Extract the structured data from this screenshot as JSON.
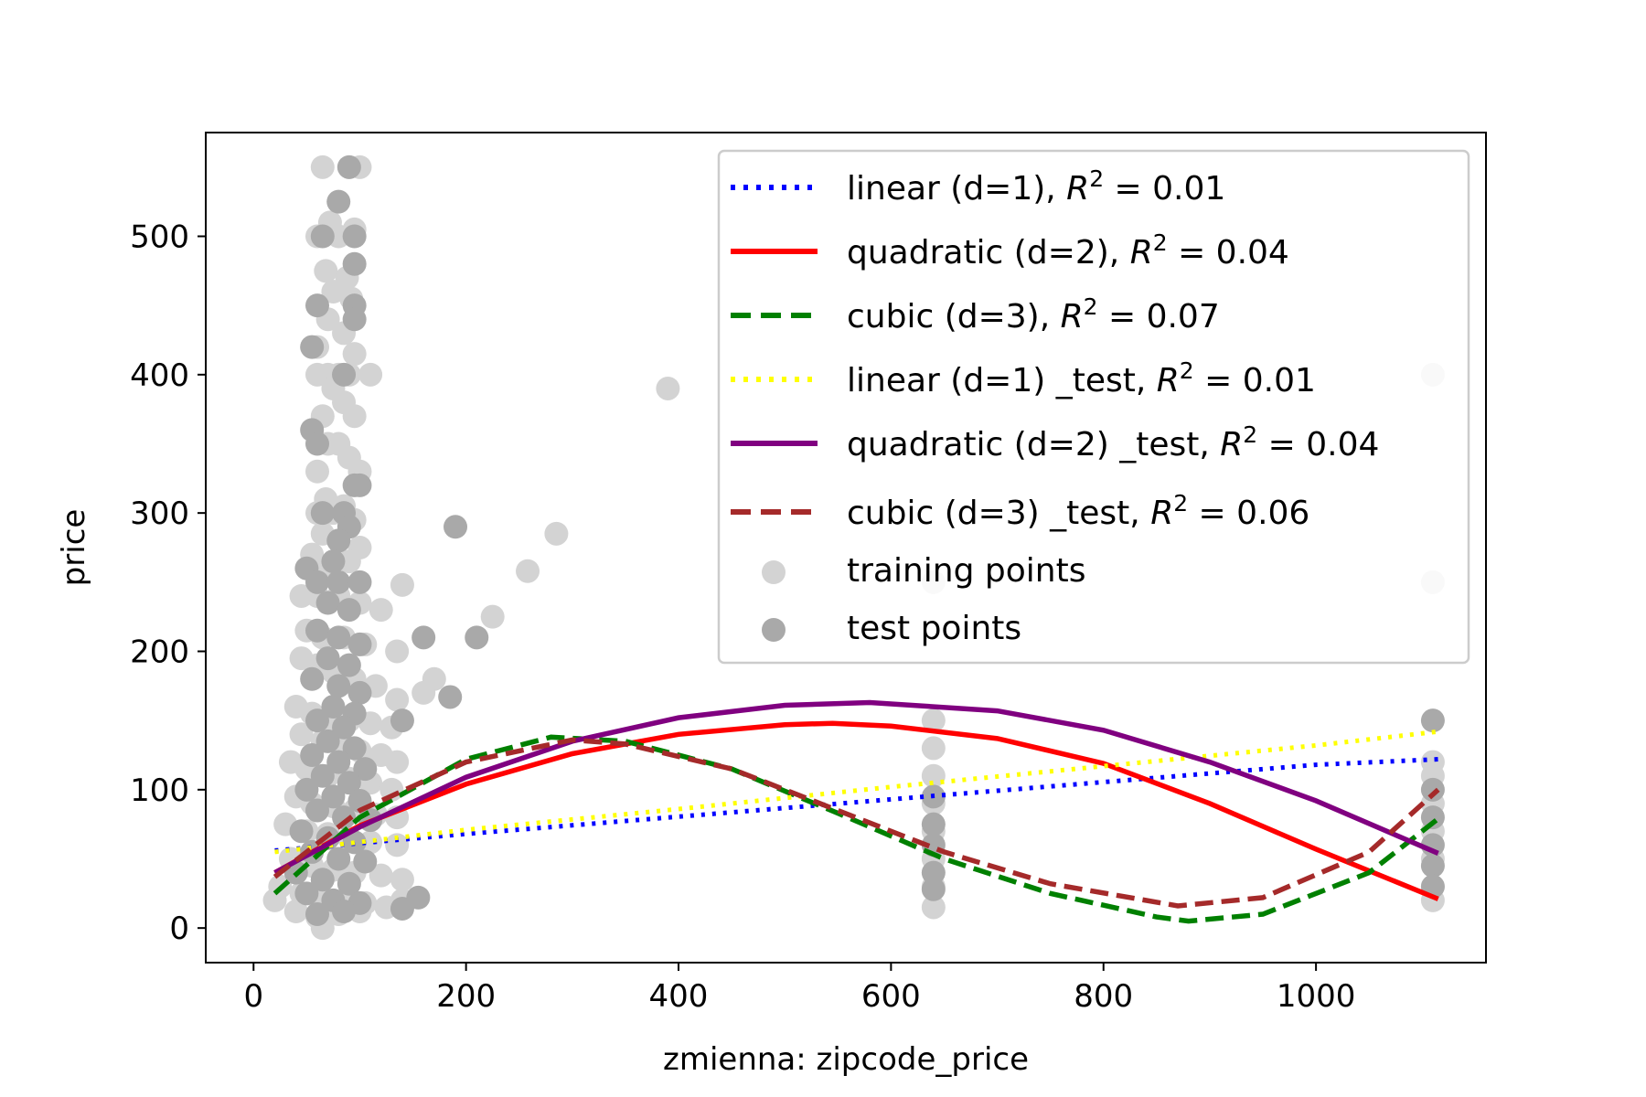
{
  "chart_data": {
    "type": "scatter",
    "title": "",
    "xlabel": "zmienna: zipcode_price",
    "ylabel": "price",
    "xlim": [
      -45,
      1160
    ],
    "ylim": [
      -25,
      575
    ],
    "xticks": [
      0,
      200,
      400,
      600,
      800,
      1000
    ],
    "yticks": [
      0,
      100,
      200,
      300,
      400,
      500
    ],
    "grid": false,
    "legend_position": "top-right",
    "series": [
      {
        "name": "linear (d=1), R^2 = 0.01",
        "legend_math": "R^2 = 0.01",
        "kind": "line",
        "style": "dotted",
        "color": "#0000ff",
        "x": [
          20,
          200,
          400,
          600,
          800,
          1000,
          1115
        ],
        "y": [
          56,
          68,
          80.5,
          93,
          105.5,
          118,
          122
        ]
      },
      {
        "name": "quadratic (d=2), R^2 = 0.04",
        "legend_math": "R^2 = 0.04",
        "kind": "line",
        "style": "solid",
        "color": "#ff0000",
        "x": [
          20,
          100,
          200,
          300,
          400,
          500,
          545,
          600,
          700,
          800,
          900,
          1000,
          1115
        ],
        "y": [
          40,
          74,
          104,
          126,
          140,
          147,
          148,
          146,
          137,
          119,
          90,
          57,
          21
        ]
      },
      {
        "name": "cubic (d=3), R^2 = 0.07",
        "legend_math": "R^2 = 0.07",
        "kind": "line",
        "style": "dashed",
        "color": "#008000",
        "x": [
          20,
          100,
          200,
          280,
          350,
          450,
          550,
          650,
          750,
          850,
          880,
          950,
          1050,
          1115
        ],
        "y": [
          25,
          80,
          122,
          138,
          135,
          115,
          83,
          50,
          25,
          8,
          5,
          10,
          40,
          79
        ]
      },
      {
        "name": "linear (d=1) _test, R^2 = 0.01",
        "legend_math": "R^2 = 0.01",
        "kind": "line",
        "style": "dotted",
        "color": "#ffff00",
        "x": [
          20,
          200,
          400,
          600,
          800,
          1000,
          1115
        ],
        "y": [
          55,
          71,
          86,
          102,
          117,
          132,
          142
        ]
      },
      {
        "name": "quadratic (d=2) _test, R^2 = 0.04",
        "legend_math": "R^2 = 0.04",
        "kind": "line",
        "style": "solid",
        "color": "#800080",
        "x": [
          20,
          100,
          200,
          300,
          400,
          500,
          580,
          700,
          800,
          900,
          1000,
          1115
        ],
        "y": [
          40,
          73,
          109,
          135,
          152,
          161,
          163,
          157,
          143,
          120,
          92,
          54
        ]
      },
      {
        "name": "cubic (d=3) _test, R^2 = 0.06",
        "legend_math": "R^2 = 0.06",
        "kind": "line",
        "style": "dashed",
        "color": "#a52a2a",
        "x": [
          20,
          100,
          200,
          300,
          350,
          450,
          550,
          650,
          750,
          870,
          950,
          1050,
          1115
        ],
        "y": [
          37,
          85,
          120,
          136,
          133,
          115,
          85,
          55,
          32,
          16,
          22,
          55,
          100
        ]
      },
      {
        "name": "training points",
        "kind": "scatter",
        "color": "#d3d3d3",
        "points": [
          [
            65,
            550
          ],
          [
            90,
            550
          ],
          [
            100,
            550
          ],
          [
            72,
            510
          ],
          [
            95,
            505
          ],
          [
            60,
            500
          ],
          [
            80,
            500
          ],
          [
            68,
            475
          ],
          [
            88,
            470
          ],
          [
            75,
            460
          ],
          [
            92,
            455
          ],
          [
            70,
            440
          ],
          [
            85,
            430
          ],
          [
            60,
            420
          ],
          [
            95,
            415
          ],
          [
            60,
            400
          ],
          [
            70,
            400
          ],
          [
            80,
            400
          ],
          [
            90,
            400
          ],
          [
            110,
            400
          ],
          [
            75,
            390
          ],
          [
            85,
            380
          ],
          [
            65,
            370
          ],
          [
            95,
            370
          ],
          [
            70,
            350
          ],
          [
            80,
            350
          ],
          [
            90,
            340
          ],
          [
            60,
            330
          ],
          [
            100,
            330
          ],
          [
            68,
            310
          ],
          [
            85,
            305
          ],
          [
            60,
            300
          ],
          [
            75,
            300
          ],
          [
            95,
            295
          ],
          [
            65,
            285
          ],
          [
            80,
            280
          ],
          [
            100,
            275
          ],
          [
            55,
            270
          ],
          [
            90,
            265
          ],
          [
            70,
            260
          ],
          [
            45,
            240
          ],
          [
            60,
            240
          ],
          [
            80,
            240
          ],
          [
            100,
            235
          ],
          [
            120,
            230
          ],
          [
            50,
            215
          ],
          [
            65,
            210
          ],
          [
            85,
            210
          ],
          [
            105,
            205
          ],
          [
            135,
            200
          ],
          [
            45,
            195
          ],
          [
            60,
            190
          ],
          [
            75,
            185
          ],
          [
            95,
            180
          ],
          [
            115,
            175
          ],
          [
            170,
            180
          ],
          [
            160,
            170
          ],
          [
            135,
            165
          ],
          [
            40,
            160
          ],
          [
            55,
            155
          ],
          [
            70,
            150
          ],
          [
            90,
            150
          ],
          [
            110,
            148
          ],
          [
            130,
            145
          ],
          [
            45,
            140
          ],
          [
            65,
            135
          ],
          [
            85,
            130
          ],
          [
            100,
            128
          ],
          [
            120,
            125
          ],
          [
            135,
            120
          ],
          [
            35,
            120
          ],
          [
            50,
            115
          ],
          [
            70,
            110
          ],
          [
            90,
            108
          ],
          [
            110,
            105
          ],
          [
            130,
            100
          ],
          [
            40,
            95
          ],
          [
            55,
            90
          ],
          [
            75,
            88
          ],
          [
            95,
            85
          ],
          [
            115,
            82
          ],
          [
            135,
            80
          ],
          [
            30,
            75
          ],
          [
            50,
            70
          ],
          [
            70,
            68
          ],
          [
            90,
            65
          ],
          [
            110,
            62
          ],
          [
            135,
            60
          ],
          [
            35,
            50
          ],
          [
            55,
            45
          ],
          [
            75,
            42
          ],
          [
            95,
            40
          ],
          [
            120,
            38
          ],
          [
            140,
            35
          ],
          [
            25,
            30
          ],
          [
            45,
            25
          ],
          [
            65,
            22
          ],
          [
            85,
            20
          ],
          [
            105,
            18
          ],
          [
            125,
            15
          ],
          [
            20,
            20
          ],
          [
            40,
            12
          ],
          [
            60,
            8
          ],
          [
            80,
            10
          ],
          [
            100,
            12
          ],
          [
            140,
            20
          ],
          [
            65,
            0
          ],
          [
            390,
            390
          ],
          [
            285,
            285
          ],
          [
            258,
            258
          ],
          [
            225,
            225
          ],
          [
            140,
            248
          ],
          [
            640,
            150
          ],
          [
            640,
            130
          ],
          [
            640,
            110
          ],
          [
            640,
            90
          ],
          [
            640,
            70
          ],
          [
            640,
            50
          ],
          [
            640,
            30
          ],
          [
            640,
            15
          ],
          [
            1110,
            400
          ],
          [
            1110,
            250
          ],
          [
            1110,
            120
          ],
          [
            1110,
            110
          ],
          [
            1110,
            90
          ],
          [
            1110,
            70
          ],
          [
            1110,
            50
          ],
          [
            1110,
            30
          ],
          [
            1110,
            20
          ],
          [
            640,
            250
          ]
        ]
      },
      {
        "name": "test points",
        "kind": "scatter",
        "color": "#a9a9a9",
        "points": [
          [
            90,
            550
          ],
          [
            80,
            525
          ],
          [
            65,
            500
          ],
          [
            95,
            500
          ],
          [
            95,
            480
          ],
          [
            60,
            450
          ],
          [
            95,
            450
          ],
          [
            95,
            440
          ],
          [
            55,
            420
          ],
          [
            85,
            400
          ],
          [
            55,
            360
          ],
          [
            60,
            350
          ],
          [
            95,
            320
          ],
          [
            100,
            320
          ],
          [
            65,
            300
          ],
          [
            85,
            300
          ],
          [
            90,
            290
          ],
          [
            80,
            280
          ],
          [
            75,
            265
          ],
          [
            50,
            260
          ],
          [
            60,
            250
          ],
          [
            80,
            250
          ],
          [
            100,
            250
          ],
          [
            70,
            235
          ],
          [
            90,
            230
          ],
          [
            60,
            215
          ],
          [
            80,
            210
          ],
          [
            100,
            205
          ],
          [
            160,
            210
          ],
          [
            70,
            195
          ],
          [
            90,
            190
          ],
          [
            55,
            180
          ],
          [
            80,
            175
          ],
          [
            100,
            170
          ],
          [
            75,
            160
          ],
          [
            95,
            155
          ],
          [
            60,
            150
          ],
          [
            85,
            145
          ],
          [
            140,
            150
          ],
          [
            70,
            135
          ],
          [
            95,
            130
          ],
          [
            55,
            125
          ],
          [
            80,
            120
          ],
          [
            105,
            115
          ],
          [
            65,
            110
          ],
          [
            90,
            105
          ],
          [
            50,
            100
          ],
          [
            75,
            95
          ],
          [
            100,
            92
          ],
          [
            60,
            85
          ],
          [
            85,
            80
          ],
          [
            110,
            78
          ],
          [
            45,
            70
          ],
          [
            70,
            65
          ],
          [
            95,
            62
          ],
          [
            55,
            55
          ],
          [
            80,
            50
          ],
          [
            105,
            48
          ],
          [
            40,
            40
          ],
          [
            65,
            35
          ],
          [
            90,
            32
          ],
          [
            50,
            25
          ],
          [
            75,
            20
          ],
          [
            100,
            18
          ],
          [
            60,
            10
          ],
          [
            85,
            12
          ],
          [
            140,
            14
          ],
          [
            155,
            22
          ],
          [
            190,
            290
          ],
          [
            210,
            210
          ],
          [
            185,
            167
          ],
          [
            640,
            95
          ],
          [
            640,
            75
          ],
          [
            640,
            60
          ],
          [
            640,
            40
          ],
          [
            640,
            28
          ],
          [
            1110,
            150
          ],
          [
            1110,
            100
          ],
          [
            1110,
            80
          ],
          [
            1110,
            60
          ],
          [
            1110,
            45
          ],
          [
            1110,
            30
          ]
        ]
      }
    ]
  }
}
